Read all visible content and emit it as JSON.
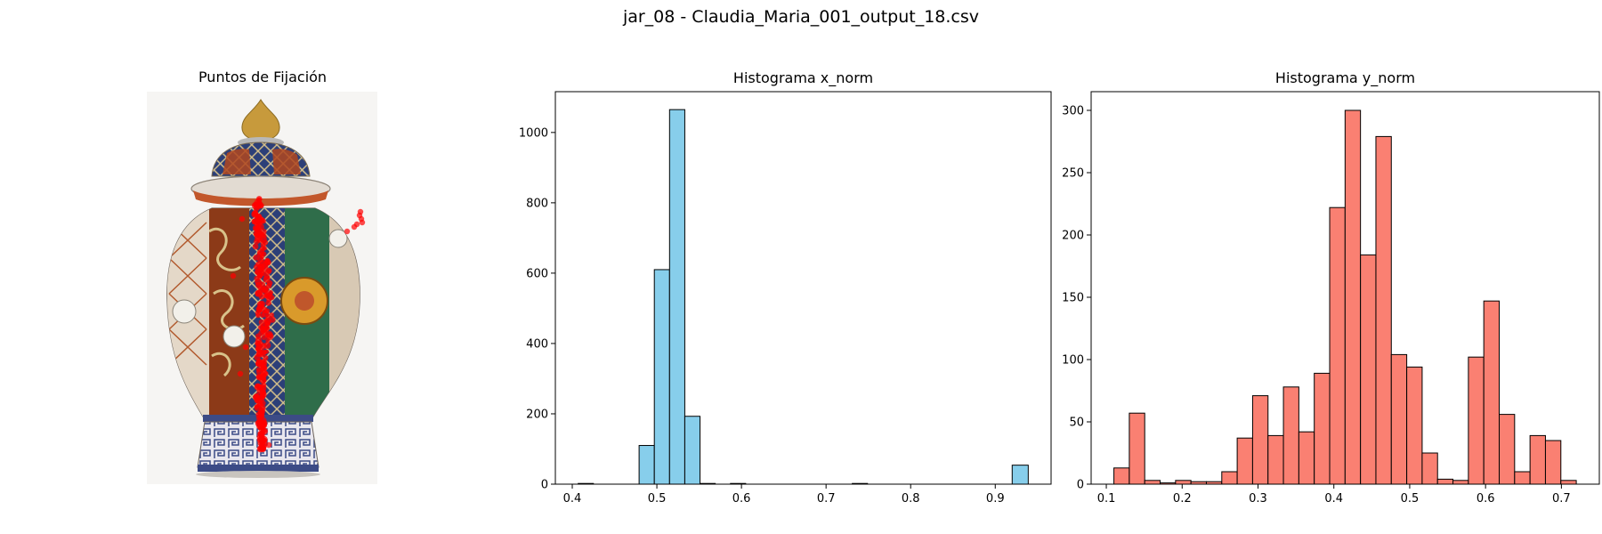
{
  "figure": {
    "suptitle": "jar_08 - Claudia_Maria_001_output_18.csv"
  },
  "image_panel": {
    "title": "Puntos de Fijación",
    "image": "porcelain-ginger-jar",
    "fixation_color": "#ff0000"
  },
  "chart_data": [
    {
      "type": "bar",
      "title": "Histograma x_norm",
      "xlabel": "",
      "ylabel": "",
      "xlim": [
        0.38,
        0.966
      ],
      "ylim": [
        0,
        1116
      ],
      "xticks": [
        0.4,
        0.5,
        0.6,
        0.7,
        0.8,
        0.9
      ],
      "yticks": [
        0,
        200,
        400,
        600,
        800,
        1000
      ],
      "fill_color": "#87ceeb",
      "edge_color": "#000000",
      "bins": [
        {
          "x0": 0.407,
          "x1": 0.425,
          "count": 2
        },
        {
          "x0": 0.479,
          "x1": 0.497,
          "count": 110
        },
        {
          "x0": 0.497,
          "x1": 0.515,
          "count": 610
        },
        {
          "x0": 0.515,
          "x1": 0.533,
          "count": 1065
        },
        {
          "x0": 0.533,
          "x1": 0.551,
          "count": 193
        },
        {
          "x0": 0.551,
          "x1": 0.569,
          "count": 2
        },
        {
          "x0": 0.587,
          "x1": 0.605,
          "count": 2
        },
        {
          "x0": 0.731,
          "x1": 0.749,
          "count": 2
        },
        {
          "x0": 0.92,
          "x1": 0.939,
          "count": 54
        }
      ]
    },
    {
      "type": "bar",
      "title": "Histograma y_norm",
      "xlabel": "",
      "ylabel": "",
      "xlim": [
        0.08,
        0.75
      ],
      "ylim": [
        0,
        315
      ],
      "xticks": [
        0.1,
        0.2,
        0.3,
        0.4,
        0.5,
        0.6,
        0.7
      ],
      "yticks": [
        0,
        50,
        100,
        150,
        200,
        250,
        300
      ],
      "fill_color": "#fa8072",
      "edge_color": "#000000",
      "bin_start": 0.11,
      "bin_width": 0.02032,
      "counts": [
        13,
        57,
        3,
        1,
        3,
        2,
        2,
        10,
        37,
        71,
        39,
        78,
        42,
        89,
        222,
        300,
        184,
        279,
        104,
        94,
        25,
        4,
        3,
        102,
        147,
        56,
        10,
        39,
        35,
        3
      ]
    }
  ]
}
